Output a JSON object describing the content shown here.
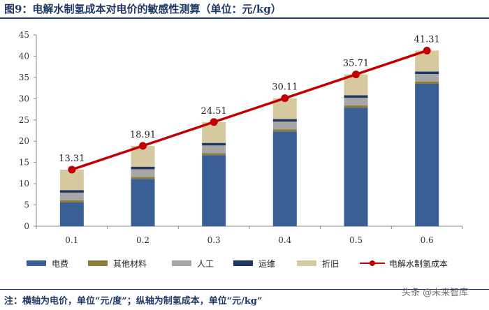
{
  "title": "图9：电解水制氢成本对电价的敏感性测算（单位：元/kg）",
  "note": "注：横轴为电价，单位“元/度”；纵轴为制氢成本，单位“元/kg”",
  "watermark": "头条 @未来智库",
  "chart_data": {
    "type": "bar",
    "stacked": true,
    "title": "电解水制氢成本对电价的敏感性测算（单位：元/kg）",
    "xlabel": "",
    "ylabel": "",
    "ylim": [
      0,
      45
    ],
    "yticks": [
      0,
      5,
      10,
      15,
      20,
      25,
      30,
      35,
      40,
      45
    ],
    "categories": [
      "0.1",
      "0.2",
      "0.3",
      "0.4",
      "0.5",
      "0.6"
    ],
    "series": [
      {
        "name": "电费",
        "type": "bar",
        "color": "#3a5f95",
        "values": [
          5.6,
          11.1,
          16.7,
          22.3,
          27.9,
          33.5
        ]
      },
      {
        "name": "其他材料",
        "type": "bar",
        "color": "#8b7d3a",
        "values": [
          0.5,
          0.5,
          0.5,
          0.5,
          0.5,
          0.5
        ]
      },
      {
        "name": "人工",
        "type": "bar",
        "color": "#a6a6a6",
        "values": [
          1.8,
          1.8,
          1.8,
          1.8,
          1.8,
          1.8
        ]
      },
      {
        "name": "运维",
        "type": "bar",
        "color": "#1f3864",
        "values": [
          0.6,
          0.6,
          0.6,
          0.6,
          0.6,
          0.6
        ]
      },
      {
        "name": "折旧",
        "type": "bar",
        "color": "#d6c9a0",
        "values": [
          4.81,
          4.91,
          4.91,
          4.91,
          4.91,
          4.91
        ]
      },
      {
        "name": "电解水制氢成本",
        "type": "line",
        "color": "#c00000",
        "values": [
          13.31,
          18.91,
          24.51,
          30.11,
          35.71,
          41.31
        ]
      }
    ],
    "data_labels": [
      "13.31",
      "18.91",
      "24.51",
      "30.11",
      "35.71",
      "41.31"
    ],
    "legend_position": "bottom",
    "grid": false
  }
}
